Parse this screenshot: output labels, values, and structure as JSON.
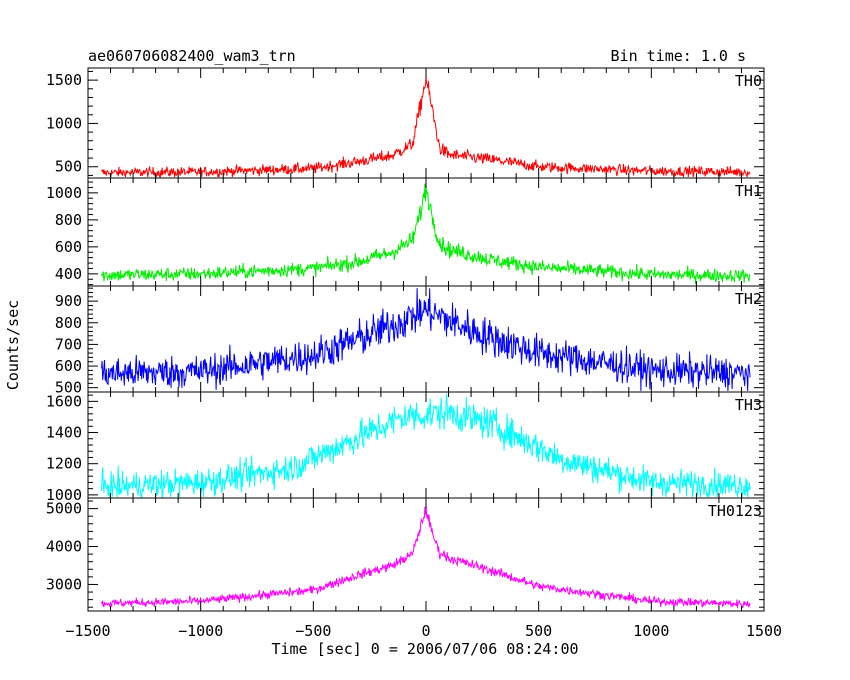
{
  "header": {
    "title": "ae060706082400_wam3_trn",
    "bin_time": "Bin time: 1.0 s"
  },
  "chart_data": {
    "type": "line",
    "xlabel": "Time [sec] 0 = 2006/07/06 08:24:00",
    "ylabel": "Counts/sec",
    "xlim": [
      -1500,
      1500
    ],
    "x_ticks": [
      -1500,
      -1000,
      -500,
      0,
      500,
      1000,
      1500
    ],
    "x_tick_labels": [
      "−1500",
      "−1000",
      "−500",
      "0",
      "500",
      "1000",
      "1500"
    ],
    "x_data_range": [
      -1440,
      1440
    ],
    "panels": [
      {
        "name": "TH0",
        "color": "#ff0000",
        "ylim": [
          370,
          1640
        ],
        "y_ticks": [
          500,
          1000,
          1500
        ],
        "profile": [
          [
            -1440,
            430
          ],
          [
            -1000,
            440
          ],
          [
            -500,
            480
          ],
          [
            -300,
            560
          ],
          [
            -150,
            630
          ],
          [
            -60,
            760
          ],
          [
            -25,
            1200
          ],
          [
            0,
            1520
          ],
          [
            25,
            1200
          ],
          [
            60,
            720
          ],
          [
            100,
            640
          ],
          [
            300,
            580
          ],
          [
            500,
            500
          ],
          [
            1000,
            450
          ],
          [
            1440,
            440
          ]
        ],
        "noise": 30
      },
      {
        "name": "TH1",
        "color": "#00ee00",
        "ylim": [
          310,
          1110
        ],
        "y_ticks": [
          400,
          600,
          800,
          1000
        ],
        "profile": [
          [
            -1440,
            390
          ],
          [
            -1000,
            400
          ],
          [
            -500,
            440
          ],
          [
            -300,
            490
          ],
          [
            -150,
            560
          ],
          [
            -60,
            650
          ],
          [
            -25,
            850
          ],
          [
            0,
            1040
          ],
          [
            25,
            850
          ],
          [
            60,
            630
          ],
          [
            100,
            580
          ],
          [
            300,
            500
          ],
          [
            500,
            450
          ],
          [
            1000,
            395
          ],
          [
            1440,
            385
          ]
        ],
        "noise": 25
      },
      {
        "name": "TH2",
        "color": "#0000ff",
        "ylim": [
          480,
          970
        ],
        "y_ticks": [
          500,
          600,
          700,
          800,
          900
        ],
        "profile": [
          [
            -1440,
            565
          ],
          [
            -1000,
            575
          ],
          [
            -500,
            650
          ],
          [
            -250,
            745
          ],
          [
            -100,
            810
          ],
          [
            0,
            860
          ],
          [
            100,
            810
          ],
          [
            250,
            745
          ],
          [
            500,
            660
          ],
          [
            1000,
            580
          ],
          [
            1440,
            565
          ]
        ],
        "noise": 38
      },
      {
        "name": "TH3",
        "color": "#00ffff",
        "ylim": [
          980,
          1660
        ],
        "y_ticks": [
          1000,
          1200,
          1400,
          1600
        ],
        "profile": [
          [
            -1440,
            1050
          ],
          [
            -1000,
            1080
          ],
          [
            -600,
            1170
          ],
          [
            -300,
            1370
          ],
          [
            -100,
            1500
          ],
          [
            100,
            1530
          ],
          [
            300,
            1450
          ],
          [
            600,
            1230
          ],
          [
            1000,
            1080
          ],
          [
            1440,
            1060
          ]
        ],
        "noise": 45
      },
      {
        "name": "TH0123",
        "color": "#ff00ff",
        "ylim": [
          2300,
          5280
        ],
        "y_ticks": [
          3000,
          4000,
          5000
        ],
        "profile": [
          [
            -1440,
            2500
          ],
          [
            -1000,
            2560
          ],
          [
            -500,
            2850
          ],
          [
            -300,
            3250
          ],
          [
            -150,
            3500
          ],
          [
            -60,
            3800
          ],
          [
            -25,
            4500
          ],
          [
            0,
            5000
          ],
          [
            25,
            4400
          ],
          [
            60,
            3850
          ],
          [
            100,
            3700
          ],
          [
            300,
            3350
          ],
          [
            500,
            2950
          ],
          [
            1000,
            2560
          ],
          [
            1440,
            2480
          ]
        ],
        "noise": 55
      }
    ],
    "grid": false,
    "legend": "none"
  }
}
